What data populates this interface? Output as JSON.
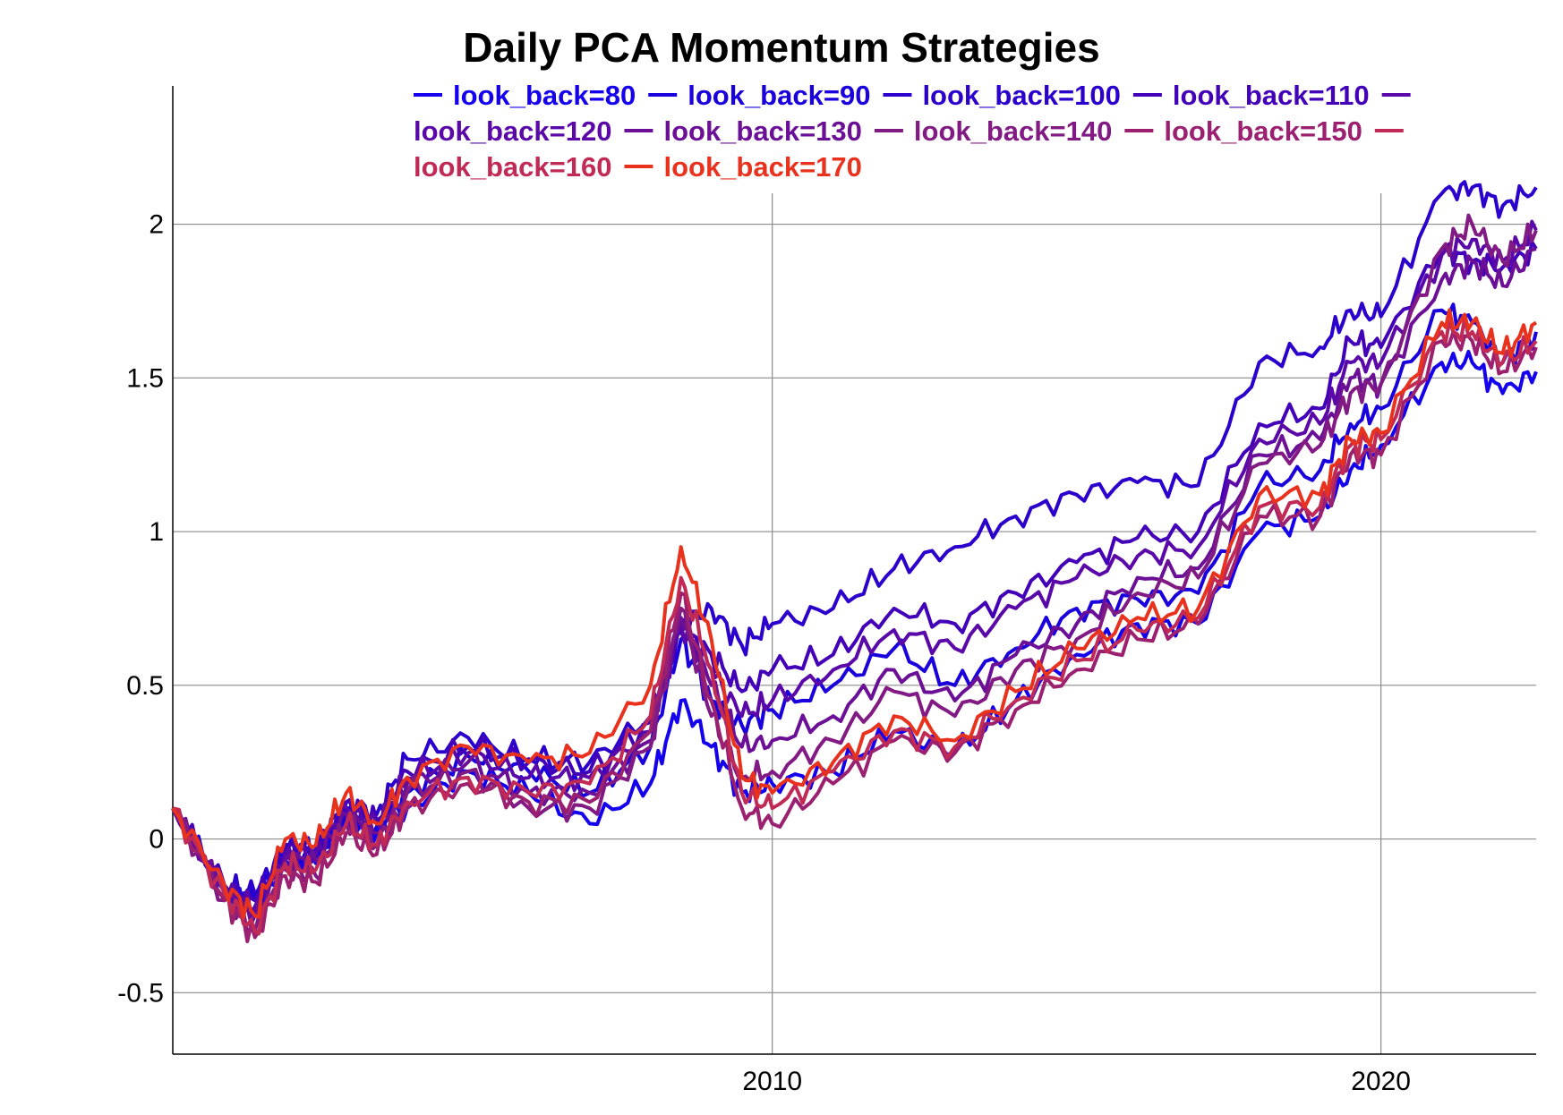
{
  "chart_data": {
    "type": "line",
    "title": "Daily PCA Momentum Strategies",
    "xlabel": "",
    "ylabel": "",
    "xlim": [
      2000.15,
      2022.55
    ],
    "ylim": [
      -0.7,
      2.45
    ],
    "xticks": [
      2010,
      2020
    ],
    "xtick_labels": [
      "2010",
      "2020"
    ],
    "yticks": [
      -0.5,
      0,
      0.5,
      1,
      1.5,
      2
    ],
    "ytick_labels": [
      "-0.5",
      "0",
      "0.5",
      "1",
      "1.5",
      "2"
    ],
    "grid": true,
    "legend": "top",
    "x": [
      2000.15,
      2001.0,
      2001.5,
      2002.0,
      2002.5,
      2003.0,
      2003.5,
      2004.0,
      2005.0,
      2006.0,
      2007.0,
      2008.0,
      2008.5,
      2009.0,
      2009.5,
      2010.0,
      2011.0,
      2012.0,
      2013.0,
      2014.0,
      2015.0,
      2016.0,
      2017.0,
      2018.0,
      2019.0,
      2019.5,
      2020.0,
      2021.0,
      2021.5,
      2022.0,
      2022.55
    ],
    "series": [
      {
        "name": "look_back=80",
        "color": "#1400ec",
        "values": [
          0.1,
          -0.18,
          -0.23,
          -0.07,
          -0.08,
          0.08,
          0.02,
          0.1,
          0.22,
          0.15,
          0.05,
          0.18,
          0.45,
          0.3,
          0.15,
          0.18,
          0.22,
          0.35,
          0.28,
          0.45,
          0.6,
          0.7,
          0.7,
          1.0,
          1.05,
          1.2,
          1.28,
          1.55,
          1.55,
          1.45,
          1.52
        ]
      },
      {
        "name": "look_back=90",
        "color": "#1a00dc",
        "values": [
          0.1,
          -0.17,
          -0.2,
          -0.05,
          -0.06,
          0.1,
          0.04,
          0.15,
          0.27,
          0.22,
          0.15,
          0.3,
          0.65,
          0.45,
          0.37,
          0.42,
          0.5,
          0.62,
          0.5,
          0.62,
          0.75,
          0.78,
          0.8,
          1.15,
          1.2,
          1.35,
          1.4,
          1.72,
          1.68,
          1.55,
          1.65
        ]
      },
      {
        "name": "look_back=100",
        "color": "#2c00cc",
        "values": [
          0.1,
          -0.15,
          -0.18,
          -0.02,
          -0.03,
          0.12,
          0.08,
          0.26,
          0.33,
          0.26,
          0.25,
          0.4,
          0.7,
          0.75,
          0.63,
          0.7,
          0.75,
          0.88,
          0.95,
          1.05,
          1.12,
          1.16,
          1.15,
          1.55,
          1.6,
          1.72,
          1.7,
          2.1,
          2.12,
          2.06,
          2.12
        ]
      },
      {
        "name": "look_back=110",
        "color": "#4200b8",
        "values": [
          0.1,
          -0.16,
          -0.2,
          -0.03,
          -0.04,
          0.12,
          0.06,
          0.22,
          0.3,
          0.25,
          0.22,
          0.38,
          0.68,
          0.6,
          0.48,
          0.55,
          0.6,
          0.75,
          0.7,
          0.8,
          0.9,
          0.98,
          1.0,
          1.35,
          1.4,
          1.62,
          1.6,
          1.92,
          1.88,
          1.86,
          1.92
        ]
      },
      {
        "name": "look_back=120",
        "color": "#5a08a8",
        "values": [
          0.1,
          -0.17,
          -0.22,
          -0.05,
          -0.05,
          0.1,
          0.05,
          0.2,
          0.28,
          0.2,
          0.2,
          0.35,
          0.7,
          0.55,
          0.4,
          0.45,
          0.55,
          0.68,
          0.62,
          0.75,
          0.85,
          0.92,
          0.95,
          1.3,
          1.35,
          1.55,
          1.55,
          1.9,
          1.95,
          1.88,
          1.98
        ]
      },
      {
        "name": "look_back=130",
        "color": "#6b1096",
        "values": [
          0.1,
          -0.18,
          -0.25,
          -0.07,
          -0.07,
          0.08,
          0.02,
          0.18,
          0.25,
          0.15,
          0.15,
          0.32,
          0.72,
          0.5,
          0.3,
          0.32,
          0.4,
          0.55,
          0.45,
          0.6,
          0.7,
          0.85,
          0.88,
          1.25,
          1.3,
          1.5,
          1.48,
          1.82,
          1.88,
          1.8,
          1.92
        ]
      },
      {
        "name": "look_back=140",
        "color": "#821a84",
        "values": [
          0.1,
          -0.2,
          -0.3,
          -0.1,
          -0.12,
          0.05,
          -0.02,
          0.15,
          0.22,
          0.1,
          0.1,
          0.3,
          0.75,
          0.4,
          0.2,
          0.22,
          0.32,
          0.48,
          0.4,
          0.55,
          0.65,
          0.8,
          0.85,
          1.22,
          1.28,
          1.45,
          1.48,
          1.92,
          2.0,
          1.88,
          1.98
        ]
      },
      {
        "name": "look_back=150",
        "color": "#9c2070",
        "values": [
          0.1,
          -0.2,
          -0.32,
          -0.12,
          -0.14,
          0.02,
          -0.05,
          0.1,
          0.18,
          0.12,
          0.12,
          0.35,
          0.8,
          0.45,
          0.1,
          0.05,
          0.18,
          0.32,
          0.28,
          0.42,
          0.55,
          0.65,
          0.7,
          1.05,
          1.05,
          1.25,
          1.25,
          1.62,
          1.62,
          1.52,
          1.6
        ]
      },
      {
        "name": "look_back=160",
        "color": "#c02a55",
        "values": [
          0.1,
          -0.18,
          -0.3,
          -0.08,
          -0.1,
          0.05,
          -0.02,
          0.12,
          0.2,
          0.15,
          0.18,
          0.4,
          0.85,
          0.55,
          0.15,
          0.1,
          0.22,
          0.35,
          0.3,
          0.45,
          0.58,
          0.68,
          0.72,
          1.08,
          1.08,
          1.28,
          1.3,
          1.65,
          1.65,
          1.55,
          1.62
        ]
      },
      {
        "name": "look_back=170",
        "color": "#e8321e",
        "values": [
          0.1,
          -0.15,
          -0.25,
          0.0,
          -0.02,
          0.15,
          0.05,
          0.2,
          0.3,
          0.25,
          0.28,
          0.5,
          0.95,
          0.65,
          0.2,
          0.15,
          0.25,
          0.4,
          0.32,
          0.48,
          0.62,
          0.72,
          0.75,
          1.12,
          1.12,
          1.3,
          1.32,
          1.68,
          1.68,
          1.58,
          1.68
        ]
      }
    ]
  }
}
